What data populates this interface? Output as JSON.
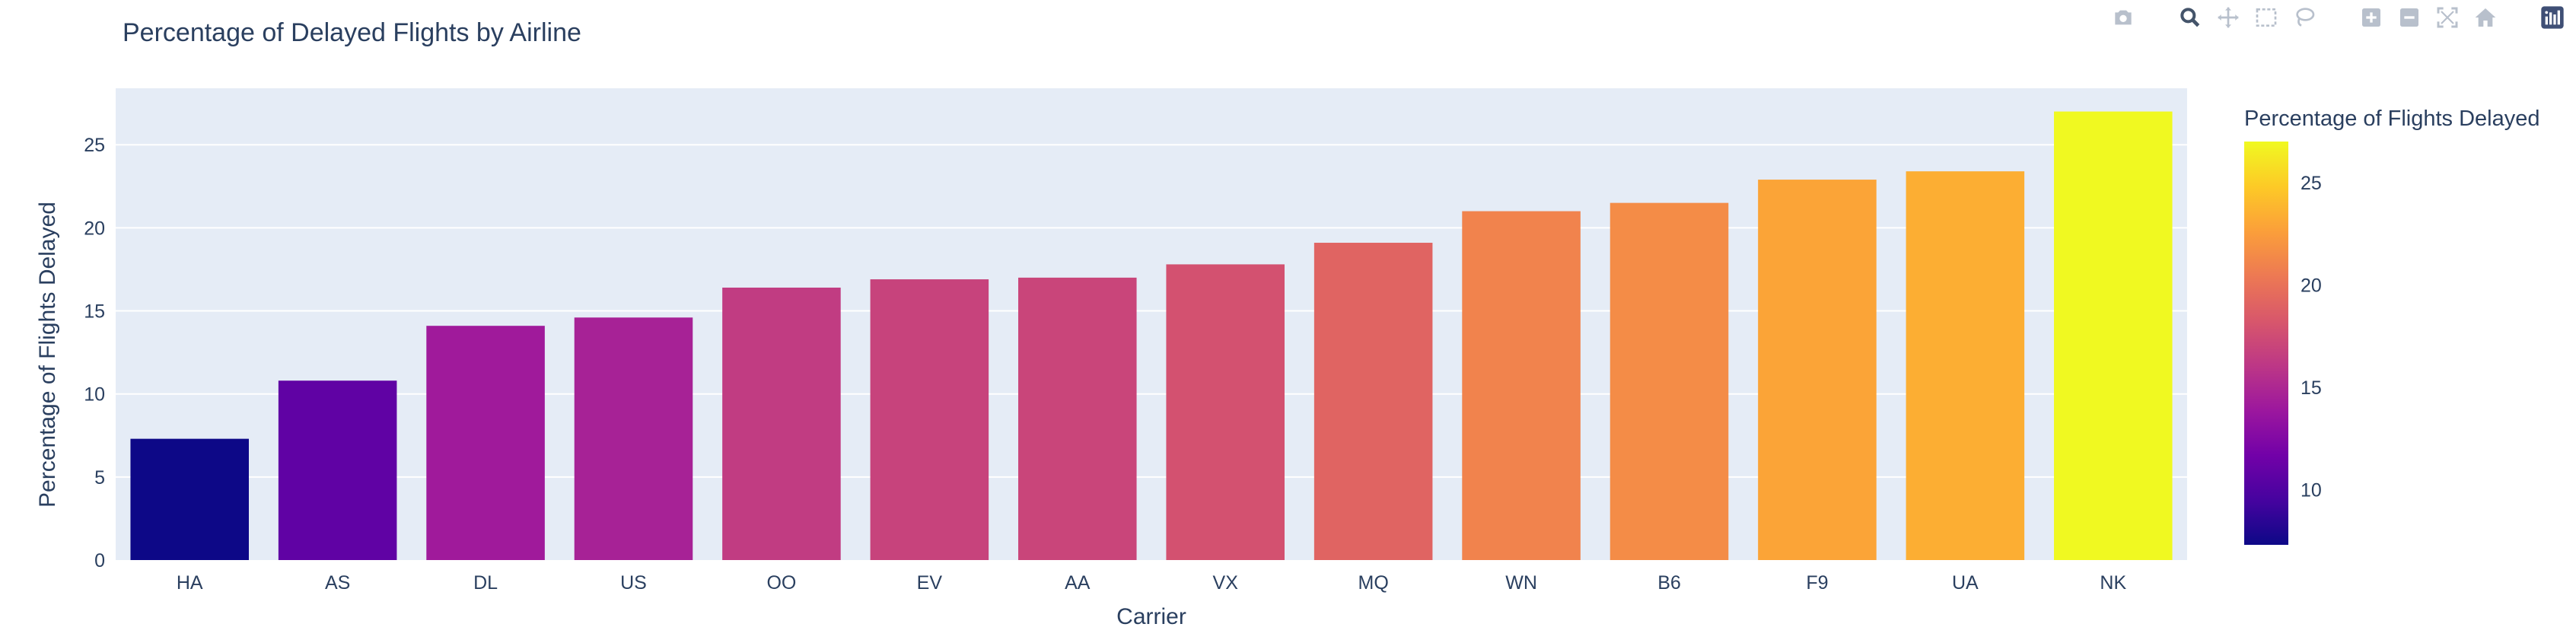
{
  "chart_data": {
    "type": "bar",
    "title": "Percentage of Delayed Flights by Airline",
    "xlabel": "Carrier",
    "ylabel": "Percentage of Flights Delayed",
    "categories": [
      "HA",
      "AS",
      "DL",
      "US",
      "OO",
      "EV",
      "AA",
      "VX",
      "MQ",
      "WN",
      "B6",
      "F9",
      "UA",
      "NK"
    ],
    "values": [
      7.3,
      10.8,
      14.1,
      14.6,
      16.4,
      16.9,
      17.0,
      17.8,
      19.1,
      21.0,
      21.5,
      22.9,
      23.4,
      27.0
    ],
    "ylim": [
      0,
      28.4
    ],
    "yticks": [
      0,
      5,
      10,
      15,
      20,
      25
    ],
    "grid": true,
    "colorbar": {
      "title": "Percentage of Flights Delayed",
      "range": [
        7.3,
        27.0
      ],
      "ticks": [
        10,
        15,
        20,
        25
      ],
      "colorscale": [
        "#0d0887",
        "#46039f",
        "#7201a8",
        "#9c179e",
        "#bd3786",
        "#d8576b",
        "#ed7953",
        "#fb9f3a",
        "#fdca26",
        "#f0f921"
      ]
    },
    "plot_bg": "#e5ecf6",
    "text_color": "#2a3f5f"
  },
  "modebar": {
    "icons": [
      "camera-icon",
      "zoom-icon",
      "pan-icon",
      "box-select-icon",
      "lasso-icon",
      "zoom-in-icon",
      "zoom-out-icon",
      "autoscale-icon",
      "reset-axes-icon",
      "plotly-logo-icon"
    ]
  }
}
